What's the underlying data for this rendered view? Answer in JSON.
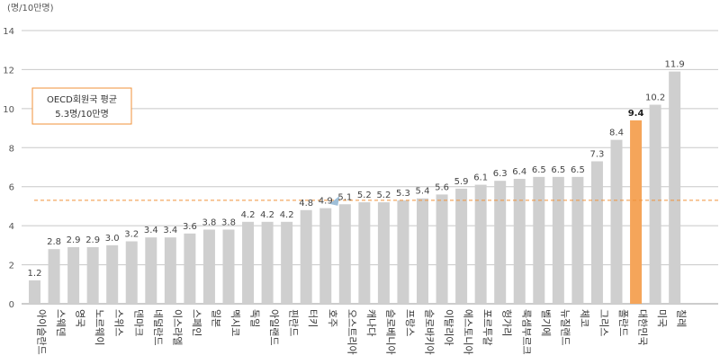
{
  "chart_data": {
    "type": "bar",
    "unit_label": "(명/10만명)",
    "title": "",
    "xlabel": "",
    "ylabel": "",
    "ylim": [
      0,
      14
    ],
    "yticks": [
      0,
      2,
      4,
      6,
      8,
      10,
      12,
      14
    ],
    "grid": true,
    "categories": [
      "아이슬란드",
      "스웨덴",
      "영국",
      "노르웨이",
      "스위스",
      "덴마크",
      "네덜란드",
      "이스라엘",
      "스페인",
      "일본",
      "멕시코",
      "독일",
      "아일랜드",
      "핀란드",
      "터키",
      "호주",
      "오스트리아",
      "캐나다",
      "슬로베니아",
      "프랑스",
      "슬로바키아",
      "이탈리아",
      "에스토니아",
      "포르투갈",
      "헝가리",
      "룩셈부르크",
      "벨기에",
      "뉴질랜드",
      "체코",
      "그리스",
      "폴란드",
      "대한민국",
      "미국",
      "칠레"
    ],
    "values": [
      1.2,
      2.8,
      2.9,
      2.9,
      3.0,
      3.2,
      3.4,
      3.4,
      3.6,
      3.8,
      3.8,
      4.2,
      4.2,
      4.2,
      4.8,
      4.9,
      5.1,
      5.2,
      5.2,
      5.3,
      5.4,
      5.6,
      5.9,
      6.1,
      6.3,
      6.4,
      6.5,
      6.5,
      6.5,
      7.3,
      8.4,
      9.4,
      10.2,
      11.9
    ],
    "value_labels": [
      "1.2",
      "2.8",
      "2.9",
      "2.9",
      "3.0",
      "3.2",
      "3.4",
      "3.4",
      "3.6",
      "3.8",
      "3.8",
      "4.2",
      "4.2",
      "4.2",
      "4.8",
      "4.9",
      "5.1",
      "5.2",
      "5.2",
      "5.3",
      "5.4",
      "5.6",
      "5.9",
      "6.1",
      "6.3",
      "6.4",
      "6.5",
      "6.5",
      "6.5",
      "7.3",
      "8.4",
      "9.4",
      "10.2",
      "11.9"
    ],
    "highlight_index": 31,
    "reference_line": {
      "value": 5.3,
      "label_line1": "OECD회원국 평균",
      "label_line2": "5.3명/10만명"
    },
    "colors": {
      "bar": "#cfcfcf",
      "highlight": "#f5a55a",
      "reference_line": "#f0923a",
      "grid": "#c8c8c8",
      "note_border": "#f0923a",
      "pointer": "#9fbfd8"
    }
  }
}
